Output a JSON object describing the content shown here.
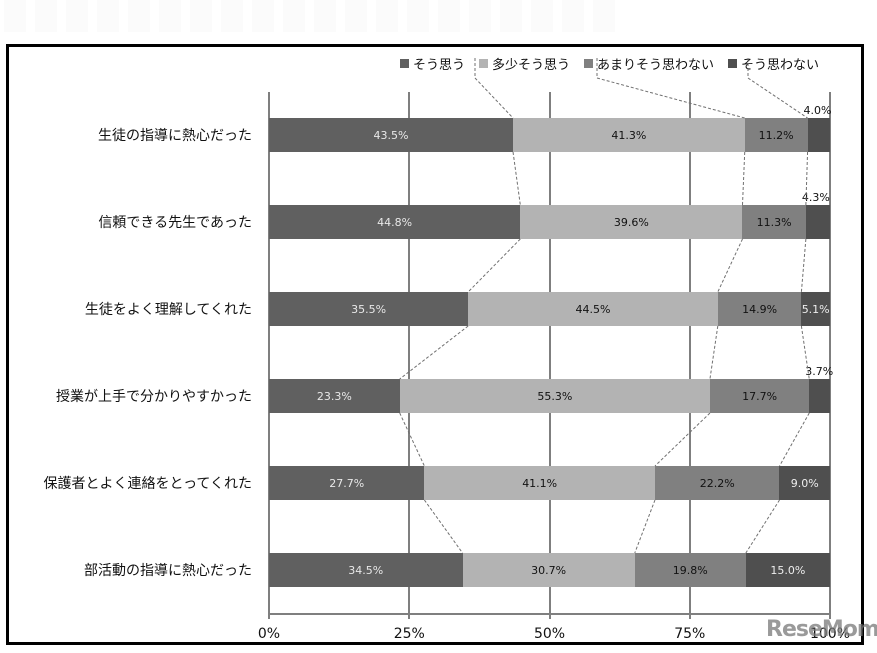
{
  "chart_data": {
    "type": "bar",
    "orientation": "horizontal",
    "stacked": "percent",
    "title": "",
    "categories": [
      "生徒の指導に熱心だった",
      "信頼できる先生であった",
      "生徒をよく理解してくれた",
      "授業が上手で分かりやすかった",
      "保護者とよく連絡をとってくれた",
      "部活動の指導に熱心だった"
    ],
    "series": [
      {
        "name": "そう思う",
        "color": "#606060",
        "values": [
          43.5,
          44.8,
          35.5,
          23.3,
          27.7,
          34.5
        ]
      },
      {
        "name": "多少そう思う",
        "color": "#b3b3b3",
        "values": [
          41.3,
          39.6,
          44.5,
          55.3,
          41.1,
          30.7
        ]
      },
      {
        "name": "あまりそう思わない",
        "color": "#808080",
        "values": [
          11.2,
          11.3,
          14.9,
          17.7,
          22.2,
          19.8
        ]
      },
      {
        "name": "そう思わない",
        "color": "#4f4f4f",
        "values": [
          4.0,
          4.3,
          5.1,
          3.7,
          9.0,
          15.0
        ]
      }
    ],
    "labels": [
      [
        "43.5%",
        "41.3%",
        "11.2%",
        "4.0%"
      ],
      [
        "44.8%",
        "39.6%",
        "11.3%",
        "4.3%"
      ],
      [
        "35.5%",
        "44.5%",
        "14.9%",
        "5.1%"
      ],
      [
        "23.3%",
        "55.3%",
        "17.7%",
        "3.7%"
      ],
      [
        "27.7%",
        "41.1%",
        "22.2%",
        "9.0%"
      ],
      [
        "34.5%",
        "30.7%",
        "19.8%",
        "15.0%"
      ]
    ],
    "xlabel": "",
    "ylabel": "",
    "xlim": [
      0,
      100
    ],
    "xticks": [
      "0%",
      "25%",
      "50%",
      "75%",
      "100%"
    ],
    "grid": true,
    "legend_position": "top-right",
    "series_lines": true
  },
  "legend": {
    "items": [
      {
        "label": "そう思う",
        "color": "#606060"
      },
      {
        "label": "多少そう思う",
        "color": "#b3b3b3"
      },
      {
        "label": "あまりそう思わない",
        "color": "#808080"
      },
      {
        "label": "そう思わない",
        "color": "#4f4f4f"
      }
    ]
  },
  "axis": {
    "ticks": [
      "0%",
      "25%",
      "50%",
      "75%",
      "100%"
    ]
  },
  "watermark": {
    "text": "ReseMom"
  }
}
